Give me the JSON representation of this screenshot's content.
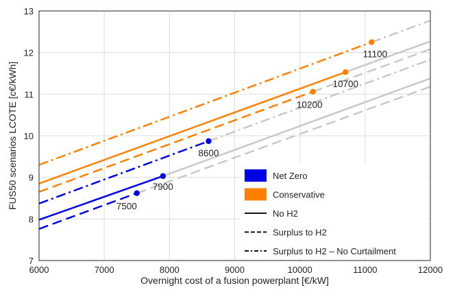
{
  "chart_data": {
    "type": "line",
    "title": "",
    "xlabel": "Overnight cost of a fusion powerplant [€/kW]",
    "ylabel": "FUS50 scenarios LCOTE [c€/kWh]",
    "xlim": [
      6000,
      12000
    ],
    "ylim": [
      7,
      13
    ],
    "xticks": [
      6000,
      7000,
      8000,
      9000,
      10000,
      11000,
      12000
    ],
    "yticks": [
      7,
      8,
      9,
      10,
      11,
      12,
      13
    ],
    "grid": true,
    "legend_position": "lower-right",
    "series": [
      {
        "scenario": "Net Zero",
        "variant": "No H2",
        "style": "solid",
        "color": "#0000e6",
        "x": [
          6000,
          7900
        ],
        "y": [
          7.98,
          9.03
        ],
        "extension": {
          "x": [
            7900,
            12000
          ],
          "y": [
            9.03,
            11.38
          ]
        },
        "marker": {
          "x": 7900,
          "y": 9.03,
          "label": "7900"
        }
      },
      {
        "scenario": "Net Zero",
        "variant": "Surplus to H2",
        "style": "dashed",
        "color": "#0000e6",
        "x": [
          6000,
          7500
        ],
        "y": [
          7.76,
          8.62
        ],
        "extension": {
          "x": [
            7500,
            12000
          ],
          "y": [
            8.62,
            11.18
          ]
        },
        "marker": {
          "x": 7500,
          "y": 8.62,
          "label": "7500"
        }
      },
      {
        "scenario": "Net Zero",
        "variant": "Surplus to H2 – No Curtailment",
        "style": "dashdot",
        "color": "#0000e6",
        "x": [
          6000,
          8600
        ],
        "y": [
          8.37,
          9.87
        ],
        "extension": {
          "x": [
            8600,
            12000
          ],
          "y": [
            9.87,
            11.83
          ]
        },
        "marker": {
          "x": 8600,
          "y": 9.87,
          "label": "8600"
        }
      },
      {
        "scenario": "Conservative",
        "variant": "No H2",
        "style": "solid",
        "color": "#ff8000",
        "x": [
          6000,
          10700
        ],
        "y": [
          8.85,
          11.53
        ],
        "extension": {
          "x": [
            10700,
            12000
          ],
          "y": [
            11.53,
            12.27
          ]
        },
        "marker": {
          "x": 10700,
          "y": 11.53,
          "label": "10700"
        }
      },
      {
        "scenario": "Conservative",
        "variant": "Surplus to H2",
        "style": "dashed",
        "color": "#ff8000",
        "x": [
          6000,
          10200
        ],
        "y": [
          8.65,
          11.06
        ],
        "extension": {
          "x": [
            10200,
            12000
          ],
          "y": [
            11.06,
            12.08
          ]
        },
        "marker": {
          "x": 10200,
          "y": 11.06,
          "label": "10200"
        }
      },
      {
        "scenario": "Conservative",
        "variant": "Surplus to H2 – No Curtailment",
        "style": "dashdot",
        "color": "#ff8000",
        "x": [
          6000,
          11100
        ],
        "y": [
          9.3,
          12.25
        ],
        "extension": {
          "x": [
            11100,
            12000
          ],
          "y": [
            12.25,
            12.77
          ]
        },
        "marker": {
          "x": 11100,
          "y": 12.25,
          "label": "11100"
        }
      }
    ],
    "legend": [
      {
        "label": "Net Zero",
        "kind": "patch",
        "color": "#0000e6"
      },
      {
        "label": "Conservative",
        "kind": "patch",
        "color": "#ff8000"
      },
      {
        "label": "No H2",
        "kind": "line",
        "style": "solid"
      },
      {
        "label": "Surplus to H2",
        "kind": "line",
        "style": "dashed"
      },
      {
        "label": "Surplus to H2 – No Curtailment",
        "kind": "line",
        "style": "dashdot"
      }
    ],
    "extension_color": "#c8c8c8"
  }
}
